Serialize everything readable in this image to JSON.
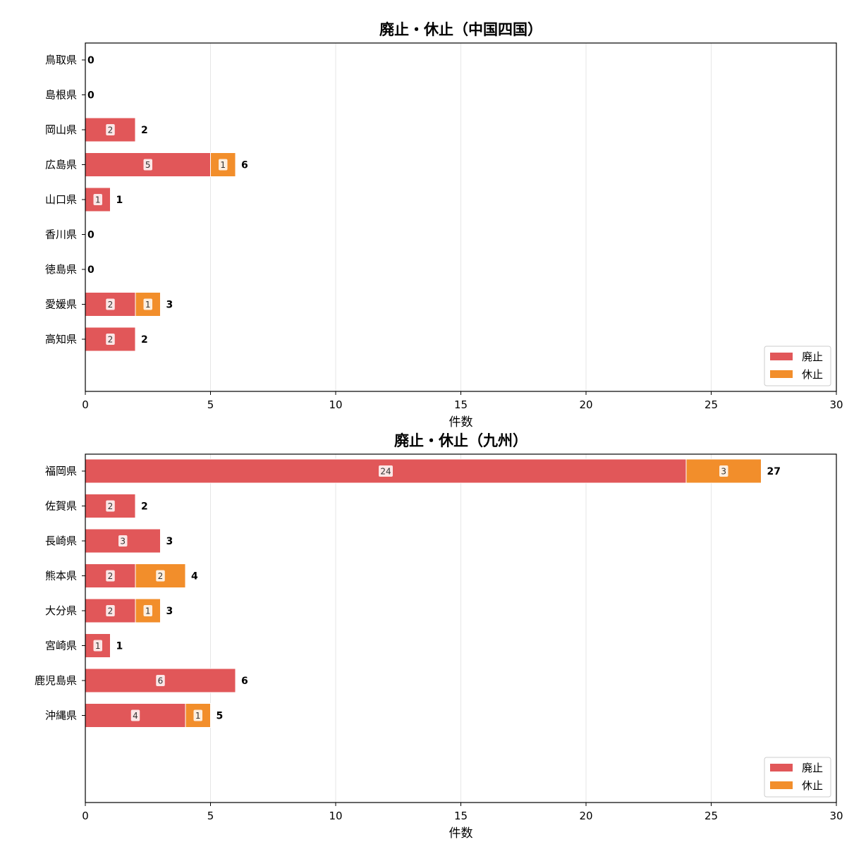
{
  "chart_data": [
    {
      "type": "bar",
      "orientation": "horizontal",
      "stacked": true,
      "title": "廃止・休止（中国四国）",
      "xlabel": "件数",
      "xlim": [
        0,
        30
      ],
      "xticks": [
        0,
        5,
        10,
        15,
        20,
        25,
        30
      ],
      "grid": "vertical",
      "legend_position": "lower-right",
      "categories": [
        "鳥取県",
        "島根県",
        "岡山県",
        "広島県",
        "山口県",
        "香川県",
        "徳島県",
        "愛媛県",
        "高知県"
      ],
      "series": [
        {
          "name": "廃止",
          "color": "#e15759",
          "values": [
            0,
            0,
            2,
            5,
            1,
            0,
            0,
            2,
            2
          ]
        },
        {
          "name": "休止",
          "color": "#f28e2b",
          "values": [
            0,
            0,
            0,
            1,
            0,
            0,
            0,
            1,
            0
          ]
        }
      ],
      "totals": [
        0,
        0,
        2,
        6,
        1,
        0,
        0,
        3,
        2
      ]
    },
    {
      "type": "bar",
      "orientation": "horizontal",
      "stacked": true,
      "title": "廃止・休止（九州）",
      "xlabel": "件数",
      "xlim": [
        0,
        30
      ],
      "xticks": [
        0,
        5,
        10,
        15,
        20,
        25,
        30
      ],
      "grid": "vertical",
      "legend_position": "lower-right",
      "categories": [
        "福岡県",
        "佐賀県",
        "長崎県",
        "熊本県",
        "大分県",
        "宮崎県",
        "鹿児島県",
        "沖縄県"
      ],
      "series": [
        {
          "name": "廃止",
          "color": "#e15759",
          "values": [
            24,
            2,
            3,
            2,
            2,
            1,
            6,
            4
          ]
        },
        {
          "name": "休止",
          "color": "#f28e2b",
          "values": [
            3,
            0,
            0,
            2,
            1,
            0,
            0,
            1
          ]
        }
      ],
      "totals": [
        27,
        2,
        3,
        4,
        3,
        1,
        6,
        5
      ]
    }
  ]
}
